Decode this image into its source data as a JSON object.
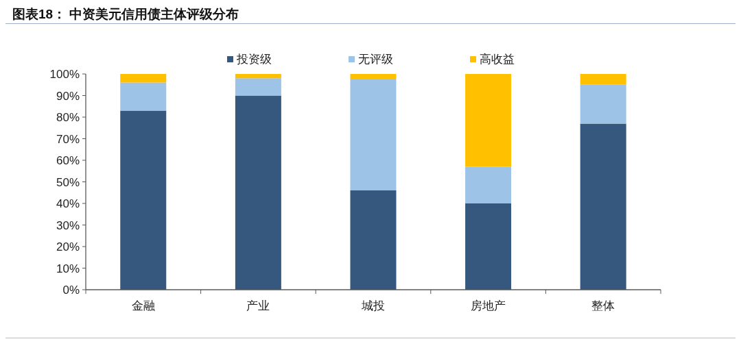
{
  "chart_data": {
    "type": "bar",
    "title": "图表18： 中资美元信用债主体评级分布",
    "categories": [
      "金融",
      "产业",
      "城投",
      "房地产",
      "整体"
    ],
    "series": [
      {
        "name": "投资级",
        "color": "#36587f",
        "values": [
          83,
          90,
          46,
          40,
          77
        ]
      },
      {
        "name": "无评级",
        "color": "#9dc3e6",
        "values": [
          13,
          8,
          51.5,
          17,
          18
        ]
      },
      {
        "name": "高收益",
        "color": "#ffc000",
        "values": [
          4,
          2,
          2.5,
          43,
          5
        ]
      }
    ],
    "stacked": true,
    "legend": "top",
    "ylim": [
      0,
      100
    ],
    "yticks": [
      {
        "value": 0,
        "label": "0%"
      },
      {
        "value": 10,
        "label": "10%"
      },
      {
        "value": 20,
        "label": "20%"
      },
      {
        "value": 30,
        "label": "30%"
      },
      {
        "value": 40,
        "label": "40%"
      },
      {
        "value": 50,
        "label": "50%"
      },
      {
        "value": 60,
        "label": "60%"
      },
      {
        "value": 70,
        "label": "70%"
      },
      {
        "value": 80,
        "label": "80%"
      },
      {
        "value": 90,
        "label": "90%"
      },
      {
        "value": 100,
        "label": "100%"
      }
    ]
  }
}
